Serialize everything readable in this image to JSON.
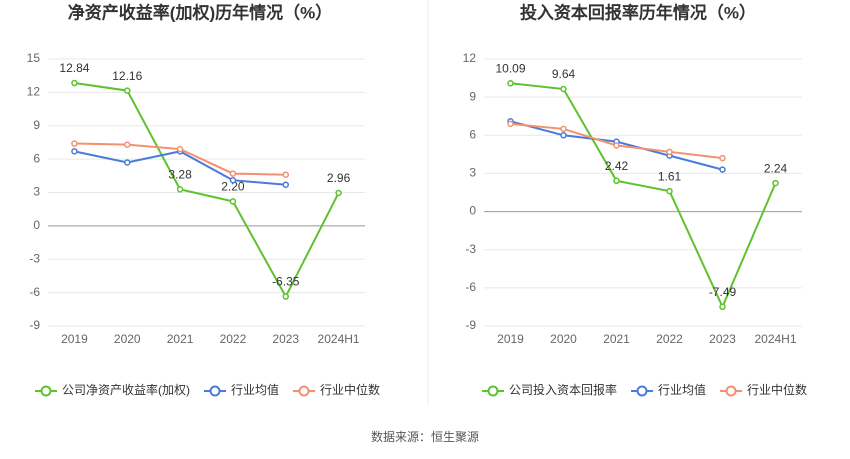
{
  "chart_data": [
    {
      "type": "line",
      "title": "净资产收益率(加权)历年情况（%）",
      "categories": [
        "2019",
        "2020",
        "2021",
        "2022",
        "2023",
        "2024H1"
      ],
      "ylim": [
        -9,
        15
      ],
      "yticks": [
        -9,
        -6,
        -3,
        0,
        3,
        6,
        9,
        12,
        15
      ],
      "grid": true,
      "series": [
        {
          "name": "公司净资产收益率(加权)",
          "color": "#5ec22e",
          "labels": true,
          "values": [
            12.84,
            12.16,
            3.28,
            2.2,
            -6.35,
            2.96
          ],
          "value_labels": [
            "12.84",
            "12.16",
            "3.28",
            "2.20",
            "-6.35",
            "2.96"
          ]
        },
        {
          "name": "行业均值",
          "color": "#4a7bd9",
          "values": [
            6.7,
            5.7,
            6.7,
            4.1,
            3.7,
            null
          ]
        },
        {
          "name": "行业中位数",
          "color": "#f39070",
          "values": [
            7.4,
            7.3,
            6.9,
            4.7,
            4.6,
            null
          ]
        }
      ]
    },
    {
      "type": "line",
      "title": "投入资本回报率历年情况（%）",
      "categories": [
        "2019",
        "2020",
        "2021",
        "2022",
        "2023",
        "2024H1"
      ],
      "ylim": [
        -9,
        12
      ],
      "yticks": [
        -9,
        -6,
        -3,
        0,
        3,
        6,
        9,
        12
      ],
      "grid": true,
      "series": [
        {
          "name": "公司投入资本回报率",
          "color": "#5ec22e",
          "labels": true,
          "values": [
            10.09,
            9.64,
            2.42,
            1.61,
            -7.49,
            2.24
          ]
        },
        {
          "name": "行业均值",
          "color": "#4a7bd9",
          "values": [
            7.1,
            6.0,
            5.5,
            4.4,
            3.3,
            null
          ]
        },
        {
          "name": "行业中位数",
          "color": "#f39070",
          "values": [
            6.9,
            6.5,
            5.2,
            4.7,
            4.2,
            null
          ]
        }
      ]
    }
  ],
  "source": "数据来源：恒生聚源"
}
